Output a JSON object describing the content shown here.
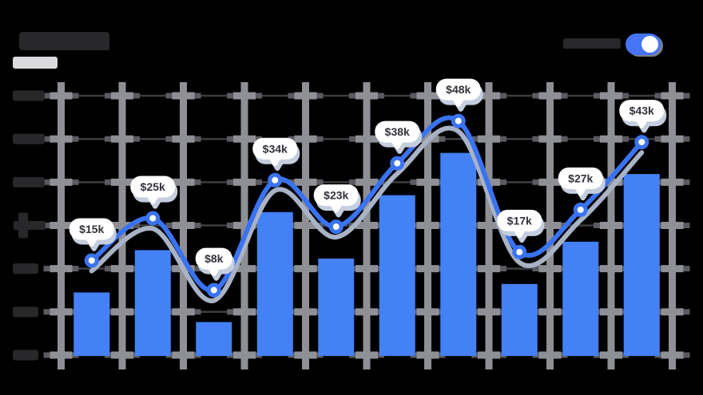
{
  "toggle": {
    "state": "on"
  },
  "colors": {
    "background": "#000000",
    "bar": "#4481F6",
    "line": "#3A73F2",
    "line_shadow": "#A9B3C5",
    "grid_major": "#8F9096",
    "grid_minor": "#3D3D42",
    "grid_nub": "#5A5B61",
    "tooltip_bg": "#FFFFFF",
    "tooltip_shadow": "#C5CEDE",
    "tooltip_text": "#32323A",
    "placeholder_dark": "#28282B",
    "placeholder_light": "#DBDBDD",
    "toggle_on": "#4574F6",
    "toggle_knob": "#FFFFFF"
  },
  "chart_data": {
    "type": "bar",
    "subtype": "bar-with-line-overlay",
    "title": "",
    "xlabel": "",
    "ylabel": "",
    "values": [
      15,
      25,
      8,
      34,
      23,
      38,
      48,
      17,
      27,
      43
    ],
    "point_labels": [
      "$15k",
      "$25k",
      "$8k",
      "$34k",
      "$23k",
      "$38k",
      "$48k",
      "$17k",
      "$27k",
      "$43k"
    ],
    "unit": "USD thousands",
    "series": [
      {
        "name": "bars",
        "type": "bar"
      },
      {
        "name": "trend",
        "type": "line"
      }
    ],
    "y_axis": {
      "ylim": [
        0,
        60
      ],
      "gridline_step": 10,
      "gridlines": 7,
      "tick_labels_redacted": true
    },
    "x_axis": {
      "categories": [],
      "tick_labels_visible": false
    },
    "grid": "on",
    "legend": "none"
  }
}
